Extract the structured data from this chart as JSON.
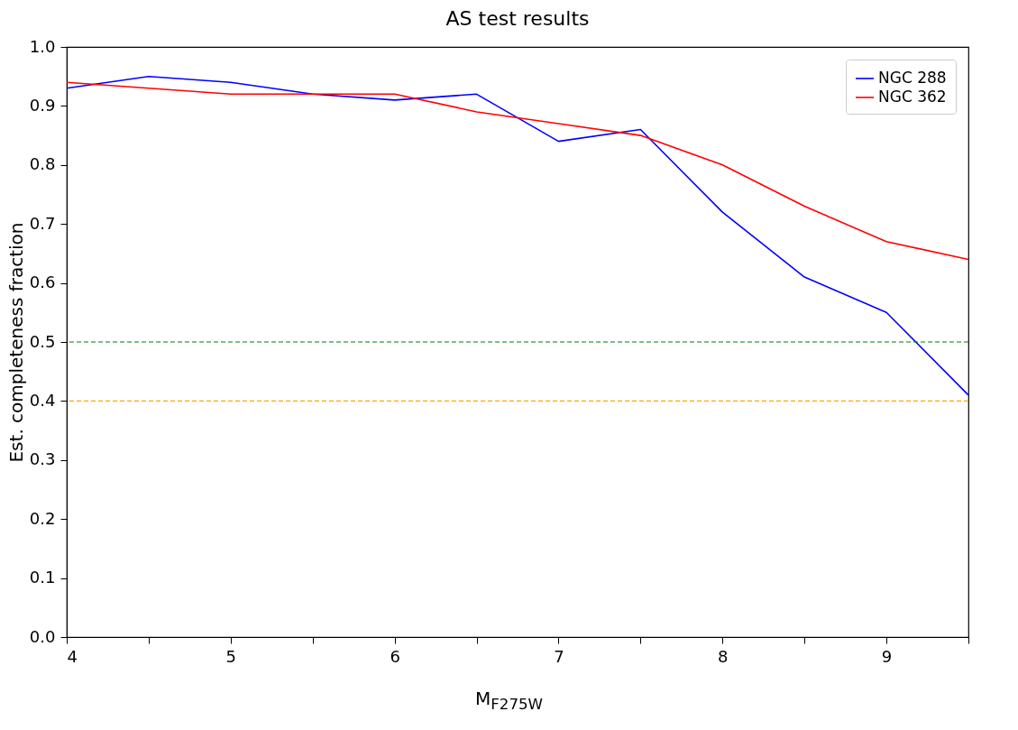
{
  "chart_data": {
    "type": "line",
    "title": "AS test results",
    "xlabel": "M$_{F275W}$",
    "ylabel": "Est. completeness fraction",
    "x": [
      4,
      4.5,
      5,
      5.5,
      6,
      6.5,
      7,
      7.5,
      8,
      8.5,
      9,
      9.5
    ],
    "series": [
      {
        "name": "NGC 288",
        "color": "#0000ff",
        "values": [
          0.93,
          0.95,
          0.94,
          0.92,
          0.91,
          0.92,
          0.84,
          0.86,
          0.72,
          0.61,
          0.55,
          0.41
        ]
      },
      {
        "name": "NGC 362",
        "color": "#ff0000",
        "values": [
          0.94,
          0.93,
          0.92,
          0.92,
          0.92,
          0.89,
          0.87,
          0.85,
          0.8,
          0.73,
          0.67,
          0.64
        ]
      }
    ],
    "xlim": [
      4,
      9.5
    ],
    "xticks": [
      4,
      {
        "value": 4.5,
        "label": null
      },
      5,
      {
        "value": 5.5,
        "label": null
      },
      6,
      {
        "value": 6.5,
        "label": null
      },
      7,
      {
        "value": 7.5,
        "label": null
      },
      8,
      {
        "value": 8.5,
        "label": null
      },
      9,
      {
        "value": 9.5,
        "label": null
      }
    ],
    "ylim": [
      0,
      1
    ],
    "yticks": [
      {
        "value": 0,
        "label": "0.0"
      },
      {
        "value": 0.1,
        "label": "0.1"
      },
      {
        "value": 0.2,
        "label": "0.2"
      },
      {
        "value": 0.3,
        "label": "0.3"
      },
      {
        "value": 0.4,
        "label": "0.4"
      },
      {
        "value": 0.5,
        "label": "0.5"
      },
      {
        "value": 0.6,
        "label": "0.6"
      },
      {
        "value": 0.7,
        "label": "0.7"
      },
      {
        "value": 0.8,
        "label": "0.8"
      },
      {
        "value": 0.9,
        "label": "0.9"
      },
      {
        "value": 1,
        "label": "1.0"
      }
    ],
    "ref_lines": [
      {
        "axis": "y",
        "value": 0.5,
        "color": "#008000",
        "line_style": "dashed"
      },
      {
        "axis": "y",
        "value": 0.4,
        "color": "#ffa500",
        "line_style": "dashed"
      }
    ],
    "legend": "top right",
    "grid": false,
    "marker": "none",
    "line_style": "solid"
  }
}
